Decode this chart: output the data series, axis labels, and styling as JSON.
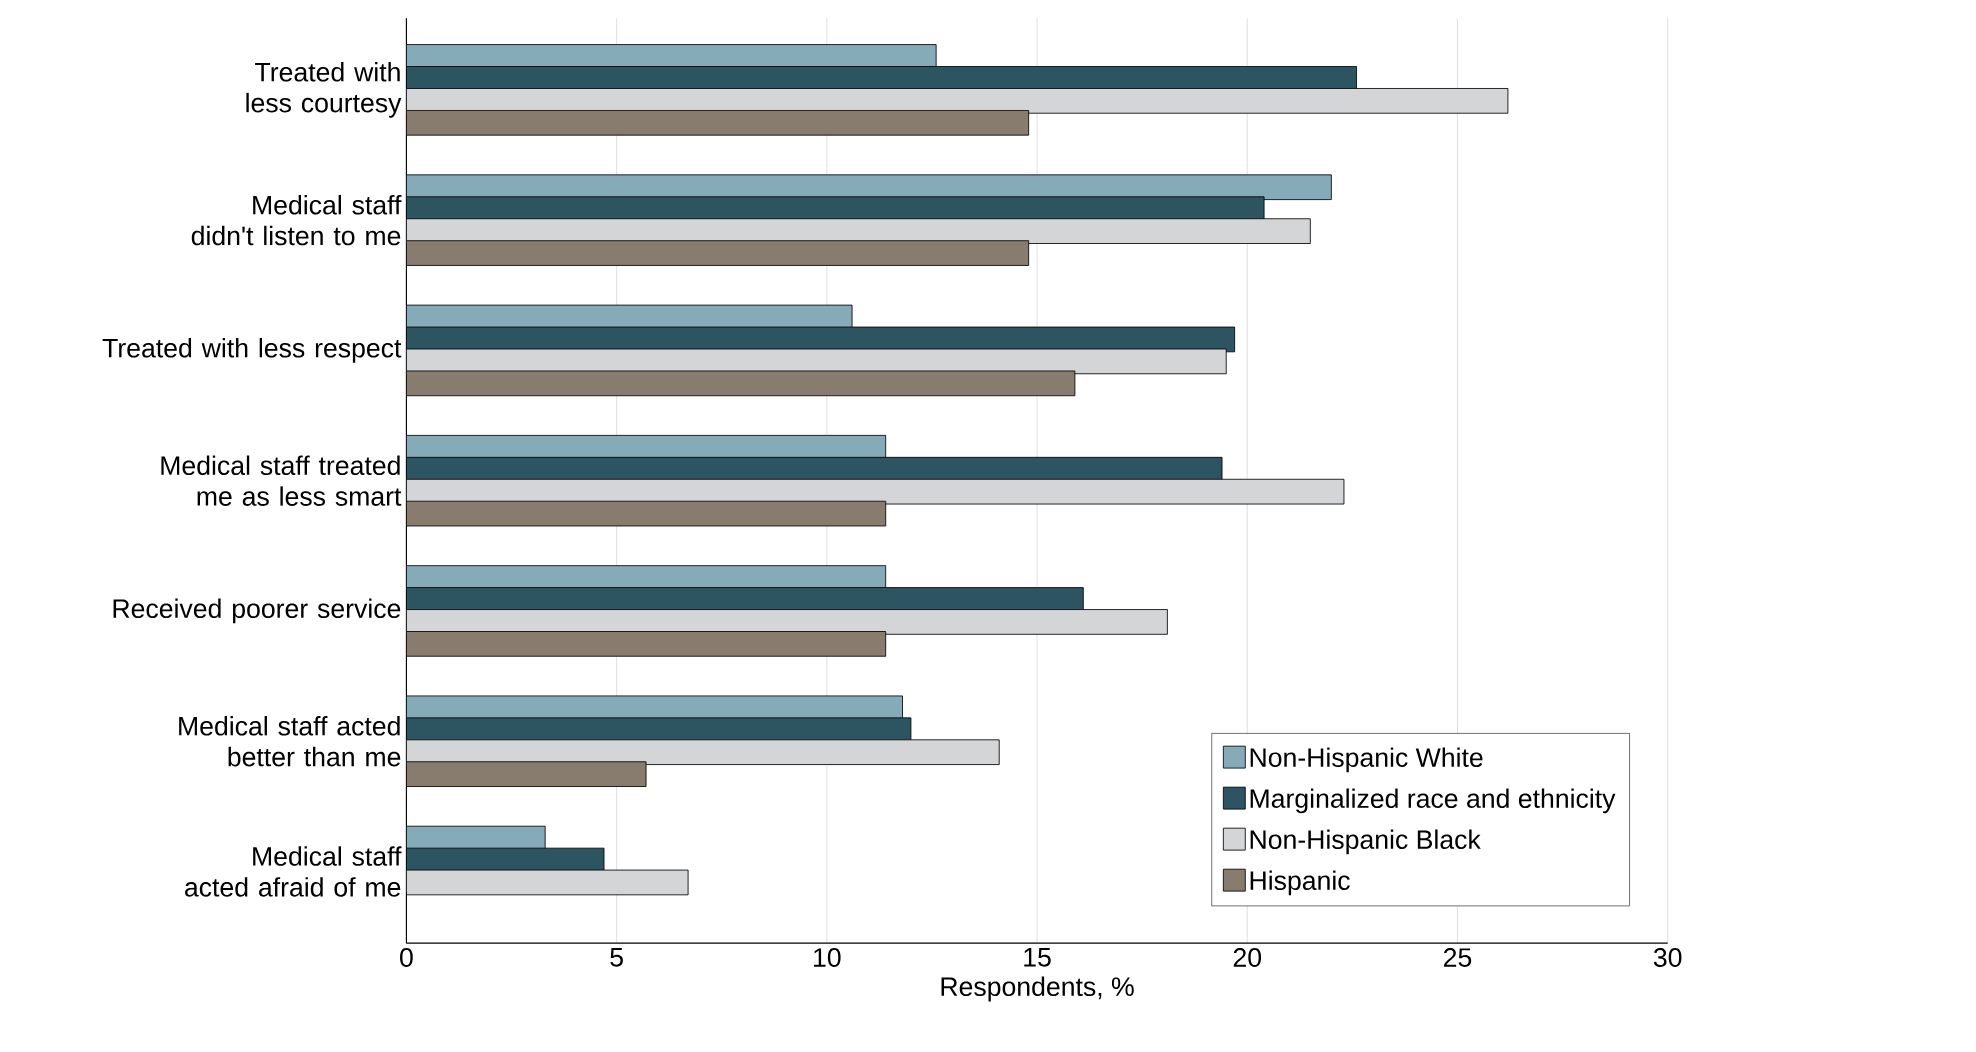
{
  "chart_data": {
    "type": "bar",
    "orientation": "horizontal",
    "xlabel": "Respondents, %",
    "categories": [
      "Treated with less courtesy",
      "Medical staff didn't listen to me",
      "Treated with less respect",
      "Medical staff treated me as less smart",
      "Received poorer service",
      "Medical staff acted better than me",
      "Medical staff acted afraid of me"
    ],
    "series": [
      {
        "name": "Non-Hispanic White",
        "color": "#86abb8",
        "values": [
          12.6,
          22.0,
          10.6,
          11.4,
          11.4,
          11.8,
          3.3
        ]
      },
      {
        "name": "Marginalized race and ethnicity",
        "color": "#2d5561",
        "values": [
          22.6,
          20.4,
          19.7,
          19.4,
          16.1,
          12.0,
          4.7
        ]
      },
      {
        "name": "Non-Hispanic Black",
        "color": "#d3d5d7",
        "values": [
          26.2,
          21.5,
          19.5,
          22.3,
          18.1,
          14.1,
          6.7
        ]
      },
      {
        "name": "Hispanic",
        "color": "#877c6e",
        "values": [
          14.8,
          14.8,
          15.9,
          11.4,
          11.4,
          5.7,
          0.0
        ]
      }
    ],
    "xlim": [
      0,
      30
    ],
    "xticks": [
      0,
      5,
      10,
      15,
      20,
      25,
      30
    ],
    "grid": "x",
    "legend": "bottom right"
  }
}
